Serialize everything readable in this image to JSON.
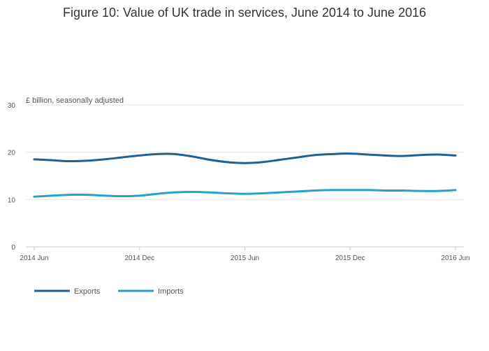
{
  "chart_data": {
    "type": "line",
    "title": "Figure 10: Value of UK trade in services, June 2014 to June 2016",
    "ylabel": "£ billion, seasonally adjusted",
    "xlabel": "",
    "ylim": [
      0,
      30
    ],
    "yticks": [
      0,
      10,
      20,
      30
    ],
    "x_tick_labels": [
      "2014 Jun",
      "2014 Dec",
      "2015 Jun",
      "2015 Dec",
      "2016 Jun"
    ],
    "x_tick_indices": [
      0,
      6,
      12,
      18,
      24
    ],
    "months": 25,
    "legend_position": "bottom-left",
    "series": [
      {
        "name": "Exports",
        "color": "#206095",
        "values": [
          18.5,
          18.3,
          18.1,
          18.2,
          18.5,
          18.9,
          19.3,
          19.6,
          19.6,
          19.1,
          18.4,
          17.9,
          17.7,
          17.9,
          18.4,
          18.9,
          19.4,
          19.6,
          19.7,
          19.5,
          19.3,
          19.2,
          19.4,
          19.5,
          19.3
        ]
      },
      {
        "name": "Imports",
        "color": "#27a0cc",
        "values": [
          10.6,
          10.8,
          11.0,
          11.0,
          10.8,
          10.7,
          10.8,
          11.2,
          11.5,
          11.6,
          11.5,
          11.3,
          11.2,
          11.3,
          11.5,
          11.7,
          11.9,
          12.0,
          12.0,
          12.0,
          11.9,
          11.9,
          11.8,
          11.8,
          12.0
        ]
      }
    ]
  }
}
